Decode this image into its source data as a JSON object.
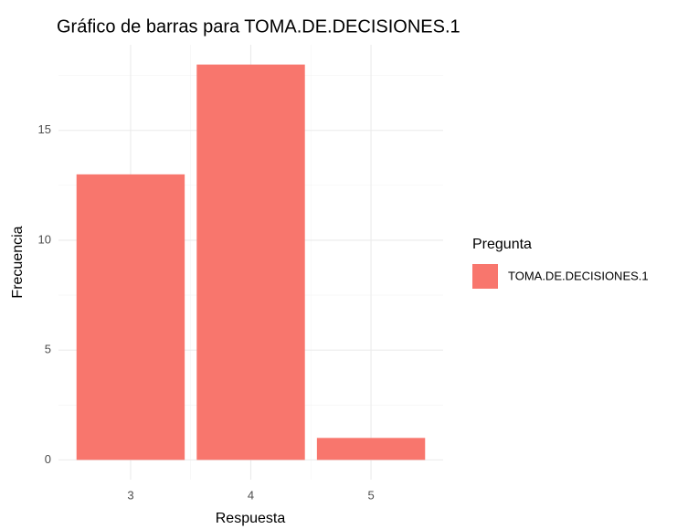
{
  "chart_data": {
    "type": "bar",
    "title": "Gráfico de barras para TOMA.DE.DECISIONES.1",
    "x_label": "Respuesta",
    "y_label": "Frecuencia",
    "categories": [
      "3",
      "4",
      "5"
    ],
    "series": [
      {
        "name": "TOMA.DE.DECISIONES.1",
        "color": "#f8766d",
        "values": [
          13,
          18,
          1
        ]
      }
    ],
    "legend_title": "Pregunta",
    "legend_position": "right",
    "ylim": [
      -0.9,
      18.9
    ],
    "yticks": [
      0,
      5,
      10,
      15
    ],
    "grid": true
  }
}
